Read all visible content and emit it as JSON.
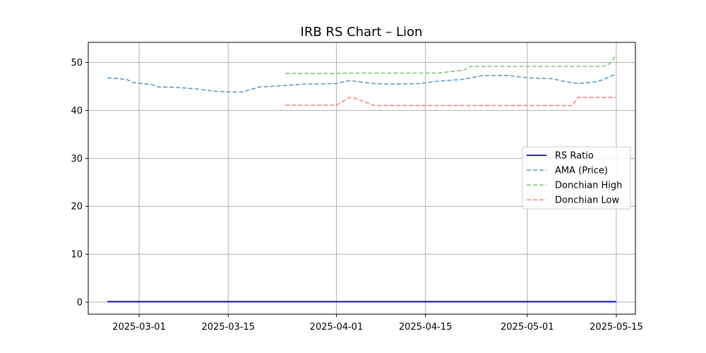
{
  "chart_data": {
    "type": "line",
    "title": "IRB RS Chart – Lion",
    "xlabel": "",
    "ylabel": "",
    "xlim": [
      "2025-02-21",
      "2025-05-18"
    ],
    "ylim": [
      -2.5,
      54.2
    ],
    "grid": true,
    "legend_position": "center-right",
    "x_ticks": [
      "2025-03-01",
      "2025-03-15",
      "2025-04-01",
      "2025-04-15",
      "2025-05-01",
      "2025-05-15"
    ],
    "y_ticks": [
      0,
      10,
      20,
      30,
      40,
      50
    ],
    "series": [
      {
        "name": "RS Ratio",
        "style": "solid",
        "color": "#0000ff",
        "points": [
          [
            "2025-02-24",
            0.1
          ],
          [
            "2025-05-15",
            0.1
          ]
        ]
      },
      {
        "name": "AMA (Price)",
        "style": "dashed",
        "color": "#5b9bc9",
        "points": [
          [
            "2025-02-24",
            46.8
          ],
          [
            "2025-02-27",
            46.5
          ],
          [
            "2025-02-28",
            45.8
          ],
          [
            "2025-03-03",
            45.4
          ],
          [
            "2025-03-04",
            44.9
          ],
          [
            "2025-03-07",
            44.8
          ],
          [
            "2025-03-10",
            44.5
          ],
          [
            "2025-03-13",
            44.0
          ],
          [
            "2025-03-17",
            43.8
          ],
          [
            "2025-03-20",
            44.9
          ],
          [
            "2025-03-24",
            45.2
          ],
          [
            "2025-03-27",
            45.5
          ],
          [
            "2025-04-01",
            45.6
          ],
          [
            "2025-04-03",
            46.2
          ],
          [
            "2025-04-07",
            45.6
          ],
          [
            "2025-04-10",
            45.5
          ],
          [
            "2025-04-14",
            45.6
          ],
          [
            "2025-04-17",
            46.1
          ],
          [
            "2025-04-21",
            46.5
          ],
          [
            "2025-04-24",
            47.3
          ],
          [
            "2025-04-28",
            47.3
          ],
          [
            "2025-05-01",
            46.8
          ],
          [
            "2025-05-05",
            46.6
          ],
          [
            "2025-05-07",
            46.0
          ],
          [
            "2025-05-09",
            45.6
          ],
          [
            "2025-05-12",
            46.0
          ],
          [
            "2025-05-13",
            46.5
          ],
          [
            "2025-05-15",
            47.6
          ]
        ]
      },
      {
        "name": "Donchian High",
        "style": "dashed",
        "color": "#7fbf7f",
        "points": [
          [
            "2025-03-24",
            47.7
          ],
          [
            "2025-04-01",
            47.7
          ],
          [
            "2025-04-03",
            47.8
          ],
          [
            "2025-04-17",
            47.8
          ],
          [
            "2025-04-21",
            48.4
          ],
          [
            "2025-04-22",
            49.2
          ],
          [
            "2025-05-13",
            49.2
          ],
          [
            "2025-05-14",
            49.8
          ],
          [
            "2025-05-15",
            51.6
          ]
        ]
      },
      {
        "name": "Donchian Low",
        "style": "dashed",
        "color": "#ff7f7f",
        "points": [
          [
            "2025-03-24",
            41.1
          ],
          [
            "2025-04-01",
            41.1
          ],
          [
            "2025-04-03",
            42.7
          ],
          [
            "2025-04-04",
            42.5
          ],
          [
            "2025-04-07",
            41.0
          ],
          [
            "2025-05-08",
            41.0
          ],
          [
            "2025-05-09",
            42.7
          ],
          [
            "2025-05-15",
            42.7
          ]
        ]
      }
    ]
  }
}
